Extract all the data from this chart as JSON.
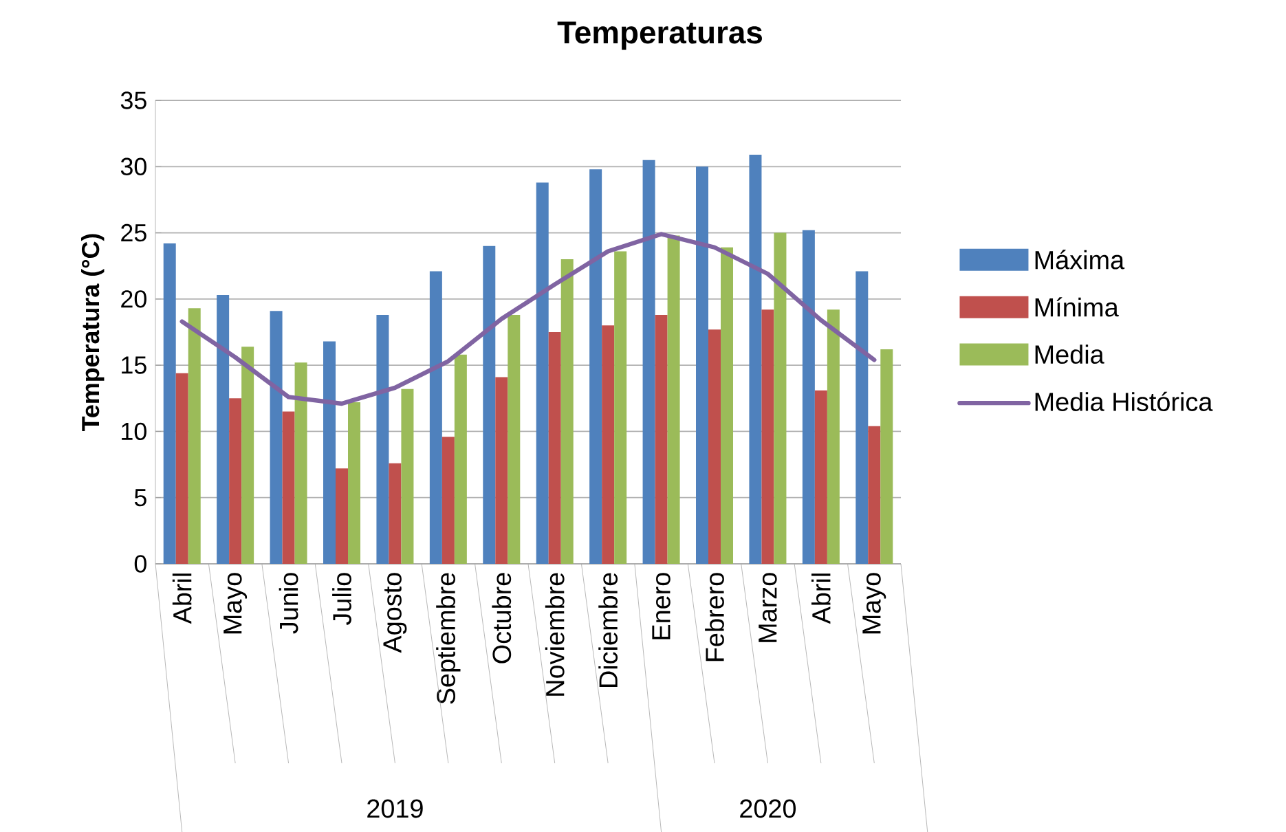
{
  "chart_data": {
    "type": "bar",
    "title": "Temperaturas",
    "ylabel": "Temperatura (°C)",
    "categories": [
      "Abril",
      "Mayo",
      "Junio",
      "Julio",
      "Agosto",
      "Septiembre",
      "Octubre",
      "Noviembre",
      "Diciembre",
      "Enero",
      "Febrero",
      "Marzo",
      "Abril",
      "Mayo"
    ],
    "series": [
      {
        "name": "Máxima",
        "color": "#4f81bd",
        "values": [
          24.2,
          20.3,
          19.1,
          16.8,
          18.8,
          22.1,
          24.0,
          28.8,
          29.8,
          30.5,
          30.0,
          30.9,
          25.2,
          22.1
        ]
      },
      {
        "name": "Mínima",
        "color": "#c0504d",
        "values": [
          14.4,
          12.5,
          11.5,
          7.2,
          7.6,
          9.6,
          14.1,
          17.5,
          18.0,
          18.8,
          17.7,
          19.2,
          13.1,
          10.4
        ]
      },
      {
        "name": "Media",
        "color": "#9bbb59",
        "values": [
          19.3,
          16.4,
          15.2,
          12.2,
          13.2,
          15.8,
          18.8,
          23.0,
          23.6,
          24.8,
          23.9,
          25.0,
          19.2,
          16.2
        ]
      },
      {
        "name": "Media Histórica",
        "type": "line",
        "color": "#8064a2",
        "values": [
          18.3,
          15.6,
          12.6,
          12.1,
          13.3,
          15.3,
          18.5,
          21.1,
          23.6,
          24.9,
          23.9,
          21.9,
          18.4,
          15.4
        ]
      }
    ],
    "ylim": [
      0,
      35
    ],
    "yticks": [
      0,
      5,
      10,
      15,
      20,
      25,
      30,
      35
    ],
    "grid": "y",
    "legend": "right",
    "marker": "none",
    "annotations": [
      "2019",
      "2020"
    ]
  }
}
